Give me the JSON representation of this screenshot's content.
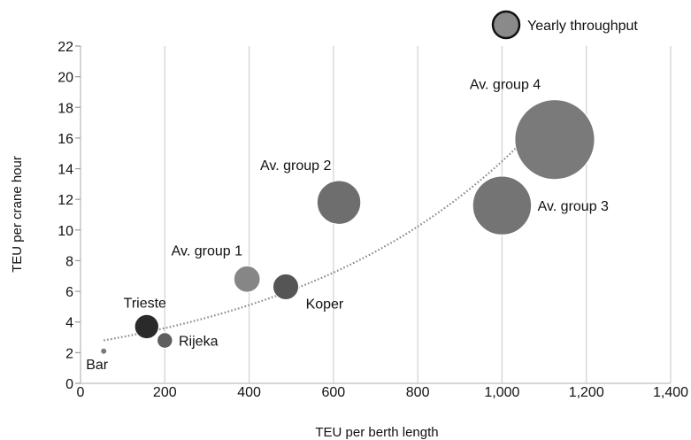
{
  "chart_data": {
    "type": "bubble",
    "xlabel": "TEU per berth length",
    "ylabel": "TEU per crane hour",
    "xlim": [
      0,
      1400
    ],
    "ylim": [
      0,
      22
    ],
    "x_ticks": [
      0,
      200,
      400,
      600,
      800,
      1000,
      1200,
      1400
    ],
    "x_tick_labels": [
      "0",
      "200",
      "400",
      "600",
      "800",
      "1,000",
      "1,200",
      "1,400"
    ],
    "y_ticks": [
      0,
      2,
      4,
      6,
      8,
      10,
      12,
      14,
      16,
      18,
      20,
      22
    ],
    "y_tick_labels": [
      "0",
      "2",
      "4",
      "6",
      "8",
      "10",
      "12",
      "14",
      "16",
      "18",
      "20",
      "22"
    ],
    "grid": "vertical",
    "legend": {
      "label": "Yearly throughput",
      "placement": "top-right"
    },
    "size_variable": "Yearly throughput",
    "points": [
      {
        "label": "Bar",
        "x": 55,
        "y": 2.1,
        "size": 0.1,
        "color": "#7a7a7a",
        "label_pos": "below-left"
      },
      {
        "label": "Trieste",
        "x": 157,
        "y": 3.7,
        "size": 2.2,
        "color": "#2a2a2a",
        "label_pos": "above"
      },
      {
        "label": "Rijeka",
        "x": 200,
        "y": 2.8,
        "size": 0.9,
        "color": "#5e5e5e",
        "label_pos": "right"
      },
      {
        "label": "Av. group 1",
        "x": 395,
        "y": 6.8,
        "size": 2.6,
        "color": "#868686",
        "label_pos": "above-left"
      },
      {
        "label": "Koper",
        "x": 487,
        "y": 6.3,
        "size": 2.5,
        "color": "#555555",
        "label_pos": "below-right"
      },
      {
        "label": "Av. group 2",
        "x": 613,
        "y": 11.8,
        "size": 7.2,
        "color": "#6e6e6e",
        "label_pos": "above-left"
      },
      {
        "label": "Av. group 3",
        "x": 1000,
        "y": 11.6,
        "size": 13.0,
        "color": "#747474",
        "label_pos": "right"
      },
      {
        "label": "Av. group 4",
        "x": 1125,
        "y": 15.9,
        "size": 24.0,
        "color": "#7a7a7a",
        "label_pos": "above-left"
      }
    ],
    "trendline": {
      "style": "dotted",
      "color": "#8a8a8a",
      "x_start": 55,
      "x_end": 1125,
      "y_start": 2.8,
      "y_end": 18.0
    }
  }
}
